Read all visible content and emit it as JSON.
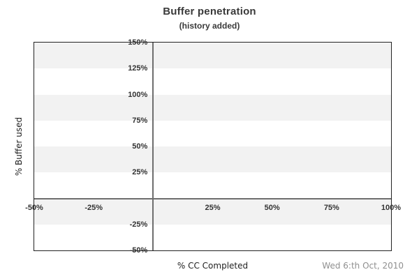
{
  "header": {
    "title": "Buffer penetration",
    "subtitle": "(history added)"
  },
  "footer": {
    "date": "Wed 6:th Oct, 2010"
  },
  "colors": {
    "background": "#ffffff",
    "plot_border": "#222222",
    "band": "#f2f2f2",
    "zero_line": "#6e6e6e",
    "tick_text": "#333333",
    "title_text": "#3a3a3a",
    "axis_text": "#222222",
    "date_text": "#8f8f8f"
  },
  "chart_data": {
    "type": "scatter",
    "title": "Buffer penetration",
    "subtitle": "(history added)",
    "xlabel": "% CC Completed",
    "ylabel": "% Buffer used",
    "xlim": [
      -50,
      100
    ],
    "ylim": [
      -50,
      150
    ],
    "x_ticks": [
      -50,
      -25,
      25,
      50,
      75,
      100
    ],
    "y_ticks": [
      150,
      125,
      100,
      75,
      50,
      25,
      -25,
      -50
    ],
    "tick_suffix": "%",
    "zero_axis_lines": true,
    "grid": "alternating horizontal bands",
    "background_bands": {
      "step": 25,
      "start_at": "top",
      "first_band_filled": true
    },
    "legend": "none",
    "series": []
  }
}
